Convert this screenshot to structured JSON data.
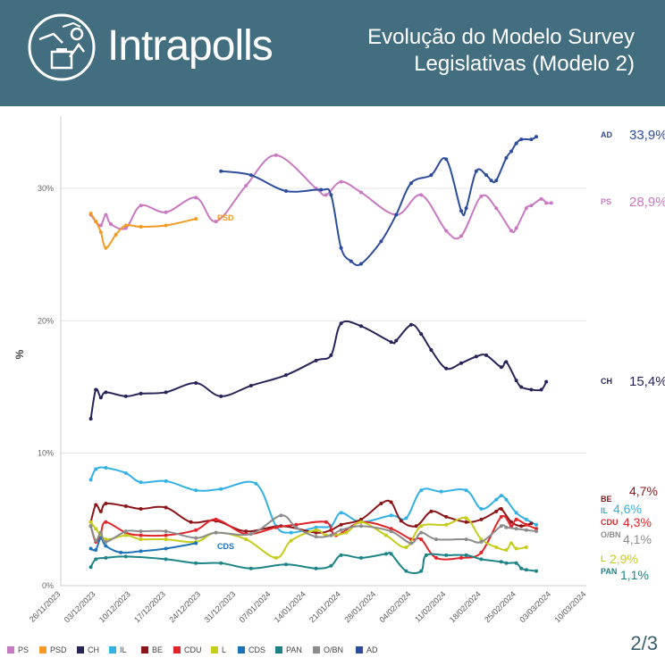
{
  "header": {
    "brand": "Intrapolls",
    "title_line1": "Evolução do Modelo Survey",
    "title_line2": "Legislativas (Modelo 2)",
    "page": "2/3",
    "background_color": "#426e80"
  },
  "chart_data": {
    "type": "line",
    "ylabel": "%",
    "ylim": [
      0,
      34
    ],
    "yticks": [
      0,
      10,
      20,
      30
    ],
    "ytick_labels": [
      "0%",
      "10%",
      "20%",
      "30%"
    ],
    "x_dates": [
      "26/11/2023",
      "03/12/2023",
      "10/12/2023",
      "17/12/2023",
      "24/12/2023",
      "31/12/2023",
      "07/01/2024",
      "14/01/2024",
      "21/01/2024",
      "28/01/2024",
      "04/02/2024",
      "11/02/2024",
      "18/02/2024",
      "25/02/2024",
      "03/03/2024",
      "10/03/2024"
    ],
    "x_range_days": [
      0,
      105
    ],
    "legend_position": "bottom",
    "series": [
      {
        "name": "PS",
        "color": "#c879c1",
        "label": "PS",
        "end_value": "28,9%",
        "points": [
          [
            6,
            28.0
          ],
          [
            7,
            27.5
          ],
          [
            8,
            27.2
          ],
          [
            9,
            28.0
          ],
          [
            10,
            27.3
          ],
          [
            13,
            27.0
          ],
          [
            16,
            28.7
          ],
          [
            21,
            28.2
          ],
          [
            27,
            29.3
          ],
          [
            31,
            27.5
          ],
          [
            37,
            30.2
          ],
          [
            43,
            32.5
          ],
          [
            51,
            30.0
          ],
          [
            53,
            29.5
          ],
          [
            56,
            30.5
          ],
          [
            60,
            29.7
          ],
          [
            67,
            28.0
          ],
          [
            72,
            29.5
          ],
          [
            77,
            26.8
          ],
          [
            80,
            26.4
          ],
          [
            84,
            29.4
          ],
          [
            87,
            28.5
          ],
          [
            90,
            26.8
          ],
          [
            91,
            27.0
          ],
          [
            93,
            28.5
          ],
          [
            94,
            28.7
          ],
          [
            96,
            29.2
          ],
          [
            97,
            28.9
          ],
          [
            98,
            28.9
          ]
        ]
      },
      {
        "name": "PSD",
        "color": "#f39b25",
        "label": "PSD",
        "end_value": "",
        "points": [
          [
            6,
            28.1
          ],
          [
            7,
            27.5
          ],
          [
            8,
            26.7
          ],
          [
            9,
            25.5
          ],
          [
            11,
            26.5
          ],
          [
            13,
            27.2
          ],
          [
            16,
            27.1
          ],
          [
            21,
            27.2
          ],
          [
            27,
            27.7
          ]
        ]
      },
      {
        "name": "CH",
        "color": "#27245a",
        "label": "CH",
        "end_value": "15,4%",
        "points": [
          [
            6,
            12.6
          ],
          [
            7,
            14.8
          ],
          [
            8,
            14.2
          ],
          [
            9,
            14.6
          ],
          [
            13,
            14.3
          ],
          [
            16,
            14.5
          ],
          [
            21,
            14.6
          ],
          [
            27,
            15.3
          ],
          [
            32,
            14.3
          ],
          [
            38,
            15.1
          ],
          [
            45,
            15.9
          ],
          [
            51,
            17.0
          ],
          [
            54,
            17.4
          ],
          [
            56,
            19.8
          ],
          [
            60,
            19.6
          ],
          [
            66,
            18.4
          ],
          [
            67,
            18.5
          ],
          [
            70,
            19.7
          ],
          [
            72,
            19.0
          ],
          [
            74,
            17.8
          ],
          [
            77,
            16.4
          ],
          [
            80,
            16.8
          ],
          [
            83,
            17.3
          ],
          [
            85,
            17.4
          ],
          [
            88,
            16.5
          ],
          [
            89,
            16.9
          ],
          [
            91,
            15.5
          ],
          [
            92,
            15.0
          ],
          [
            94,
            14.8
          ],
          [
            96,
            14.8
          ],
          [
            97,
            15.4
          ]
        ]
      },
      {
        "name": "IL",
        "color": "#33b0e4",
        "label": "IL",
        "end_value": "4,6%",
        "points": [
          [
            6,
            8.0
          ],
          [
            7,
            8.8
          ],
          [
            9,
            8.9
          ],
          [
            13,
            8.5
          ],
          [
            16,
            7.8
          ],
          [
            21,
            7.9
          ],
          [
            27,
            7.2
          ],
          [
            32,
            7.3
          ],
          [
            39,
            7.7
          ],
          [
            43,
            4.5
          ],
          [
            46,
            4.0
          ],
          [
            51,
            4.4
          ],
          [
            54,
            4.5
          ],
          [
            56,
            5.5
          ],
          [
            60,
            4.8
          ],
          [
            66,
            5.3
          ],
          [
            69,
            5.1
          ],
          [
            72,
            7.2
          ],
          [
            76,
            7.1
          ],
          [
            81,
            7.2
          ],
          [
            84,
            5.8
          ],
          [
            87,
            6.5
          ],
          [
            88,
            6.8
          ],
          [
            89,
            6.5
          ],
          [
            91,
            5.5
          ],
          [
            93,
            5.0
          ],
          [
            95,
            4.6
          ]
        ]
      },
      {
        "name": "BE",
        "color": "#8b1518",
        "label": "BE",
        "end_value": "4,7%",
        "points": [
          [
            6,
            4.8
          ],
          [
            7,
            6.1
          ],
          [
            8,
            5.6
          ],
          [
            9,
            6.2
          ],
          [
            13,
            6.0
          ],
          [
            16,
            5.8
          ],
          [
            21,
            5.9
          ],
          [
            26,
            4.8
          ],
          [
            31,
            4.9
          ],
          [
            37,
            4.1
          ],
          [
            44,
            4.5
          ],
          [
            51,
            4.0
          ],
          [
            54,
            4.2
          ],
          [
            56,
            4.6
          ],
          [
            60,
            5.0
          ],
          [
            64,
            6.2
          ],
          [
            66,
            6.3
          ],
          [
            68,
            4.9
          ],
          [
            71,
            4.5
          ],
          [
            74,
            5.6
          ],
          [
            77,
            5.2
          ],
          [
            81,
            4.8
          ],
          [
            84,
            5.0
          ],
          [
            87,
            5.6
          ],
          [
            88,
            5.8
          ],
          [
            90,
            4.8
          ],
          [
            92,
            4.5
          ],
          [
            94,
            4.7
          ]
        ]
      },
      {
        "name": "CDU",
        "color": "#e12429",
        "label": "CDU",
        "end_value": "4,3%",
        "points": [
          [
            6,
            4.5
          ],
          [
            7,
            3.3
          ],
          [
            8,
            4.0
          ],
          [
            9,
            4.8
          ],
          [
            13,
            4.0
          ],
          [
            16,
            3.8
          ],
          [
            21,
            3.8
          ],
          [
            27,
            4.2
          ],
          [
            31,
            5.0
          ],
          [
            37,
            3.9
          ],
          [
            43,
            4.4
          ],
          [
            47,
            4.6
          ],
          [
            53,
            4.8
          ],
          [
            55,
            3.8
          ],
          [
            60,
            4.8
          ],
          [
            66,
            4.3
          ],
          [
            70,
            3.5
          ],
          [
            72,
            3.5
          ],
          [
            75,
            2.1
          ],
          [
            80,
            2.1
          ],
          [
            84,
            2.5
          ],
          [
            88,
            5.2
          ],
          [
            90,
            4.5
          ],
          [
            91,
            5.0
          ],
          [
            93,
            4.6
          ],
          [
            95,
            4.3
          ]
        ]
      },
      {
        "name": "L",
        "color": "#c6cc1a",
        "label": "L",
        "end_value": "2,9%",
        "points": [
          [
            6,
            4.8
          ],
          [
            7,
            4.3
          ],
          [
            9,
            3.5
          ],
          [
            13,
            3.8
          ],
          [
            16,
            3.5
          ],
          [
            21,
            3.5
          ],
          [
            27,
            3.3
          ],
          [
            31,
            4.0
          ],
          [
            37,
            3.5
          ],
          [
            43,
            2.1
          ],
          [
            46,
            3.4
          ],
          [
            51,
            4.2
          ],
          [
            53,
            3.8
          ],
          [
            57,
            4.0
          ],
          [
            60,
            4.8
          ],
          [
            65,
            3.8
          ],
          [
            69,
            2.9
          ],
          [
            72,
            4.5
          ],
          [
            77,
            4.6
          ],
          [
            81,
            5.1
          ],
          [
            84,
            3.5
          ],
          [
            87,
            2.9
          ],
          [
            89,
            2.7
          ],
          [
            90,
            3.2
          ],
          [
            91,
            2.8
          ],
          [
            93,
            2.9
          ]
        ]
      },
      {
        "name": "CDS",
        "color": "#1d73b8",
        "label": "CDS",
        "end_value": "",
        "points": [
          [
            6,
            2.8
          ],
          [
            7,
            2.7
          ],
          [
            8,
            3.6
          ],
          [
            9,
            3.0
          ],
          [
            12,
            2.5
          ],
          [
            16,
            2.6
          ],
          [
            21,
            2.8
          ],
          [
            27,
            3.2
          ]
        ]
      },
      {
        "name": "PAN",
        "color": "#1c8486",
        "label": "PAN",
        "end_value": "1,1%",
        "points": [
          [
            6,
            1.4
          ],
          [
            7,
            2.0
          ],
          [
            9,
            2.1
          ],
          [
            13,
            2.2
          ],
          [
            21,
            2.0
          ],
          [
            27,
            1.7
          ],
          [
            32,
            1.7
          ],
          [
            38,
            1.3
          ],
          [
            45,
            1.6
          ],
          [
            51,
            1.3
          ],
          [
            54,
            1.5
          ],
          [
            56,
            2.3
          ],
          [
            60,
            2.1
          ],
          [
            65,
            2.4
          ],
          [
            66,
            2.4
          ],
          [
            69,
            1.1
          ],
          [
            72,
            1.1
          ],
          [
            73,
            2.3
          ],
          [
            77,
            2.3
          ],
          [
            81,
            2.3
          ],
          [
            84,
            2.0
          ],
          [
            88,
            1.8
          ],
          [
            89,
            1.7
          ],
          [
            91,
            1.7
          ],
          [
            92,
            1.3
          ],
          [
            93,
            1.2
          ],
          [
            95,
            1.1
          ]
        ]
      },
      {
        "name": "O/BN",
        "color": "#8c8c8c",
        "label": "O/BN",
        "end_value": "4,1%",
        "points": [
          [
            6,
            4.5
          ],
          [
            7,
            3.4
          ],
          [
            8,
            4.0
          ],
          [
            9,
            3.3
          ],
          [
            13,
            4.1
          ],
          [
            16,
            4.1
          ],
          [
            21,
            4.1
          ],
          [
            27,
            3.6
          ],
          [
            31,
            4.0
          ],
          [
            38,
            3.9
          ],
          [
            44,
            5.3
          ],
          [
            47,
            4.4
          ],
          [
            51,
            3.7
          ],
          [
            54,
            3.8
          ],
          [
            56,
            4.2
          ],
          [
            60,
            4.5
          ],
          [
            66,
            4.1
          ],
          [
            70,
            3.2
          ],
          [
            72,
            4.0
          ],
          [
            75,
            3.5
          ],
          [
            81,
            3.5
          ],
          [
            84,
            3.3
          ],
          [
            88,
            4.5
          ],
          [
            89,
            4.4
          ],
          [
            91,
            4.3
          ],
          [
            93,
            4.2
          ],
          [
            95,
            4.1
          ]
        ]
      },
      {
        "name": "AD",
        "color": "#2e4c9c",
        "label": "AD",
        "end_value": "33,9%",
        "points": [
          [
            32,
            31.3
          ],
          [
            38,
            31.0
          ],
          [
            45,
            29.8
          ],
          [
            52,
            29.9
          ],
          [
            54,
            29.5
          ],
          [
            56,
            25.5
          ],
          [
            58,
            24.5
          ],
          [
            60,
            24.3
          ],
          [
            64,
            26.0
          ],
          [
            67,
            28.0
          ],
          [
            70,
            30.4
          ],
          [
            74,
            31.0
          ],
          [
            77,
            32.2
          ],
          [
            80,
            28.3
          ],
          [
            81,
            28.5
          ],
          [
            83,
            31.3
          ],
          [
            85,
            31.0
          ],
          [
            86,
            30.6
          ],
          [
            87,
            30.6
          ],
          [
            89,
            32.3
          ],
          [
            90,
            32.8
          ],
          [
            91,
            33.4
          ],
          [
            92,
            33.7
          ],
          [
            94,
            33.7
          ],
          [
            95,
            33.9
          ]
        ]
      }
    ]
  }
}
